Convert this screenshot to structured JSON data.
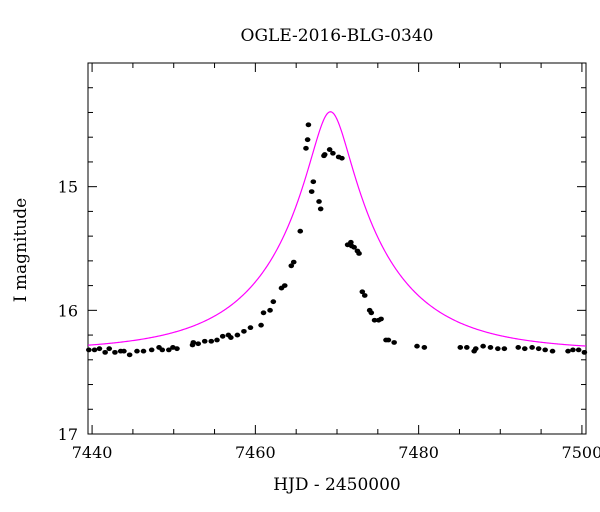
{
  "chart_data": {
    "type": "scatter",
    "title": "OGLE-2016-BLG-0340",
    "xlabel": "HJD - 2450000",
    "ylabel": "I magnitude",
    "xlim": [
      7439.5,
      7500.5
    ],
    "ylim": [
      17.0,
      14.0
    ],
    "y_inverted": true,
    "grid": false,
    "xticks": [
      7440,
      7460,
      7480,
      7500
    ],
    "xtick_labels": [
      "7440",
      "7460",
      "7480",
      "7500"
    ],
    "yticks": [
      15,
      16,
      17
    ],
    "ytick_labels": [
      "15",
      "16",
      "17"
    ],
    "colors": {
      "points": "#000000",
      "model": "#ff00ff",
      "axes": "#000000"
    },
    "series": [
      {
        "type": "scatter",
        "x": [
          7439.6,
          7440.3,
          7440.9,
          7441.6,
          7442.1,
          7442.8,
          7443.5,
          7443.9,
          7444.6,
          7445.5,
          7446.3,
          7447.3,
          7448.2,
          7448.6,
          7449.4,
          7449.9,
          7450.4,
          7452.3,
          7452.4,
          7453.0,
          7453.8,
          7454.6,
          7455.3,
          7456.0,
          7456.7,
          7457.0,
          7457.8,
          7458.6,
          7459.4,
          7460.7,
          7461.0,
          7461.8,
          7462.2,
          7463.2,
          7463.6,
          7464.4,
          7464.7,
          7465.5,
          7466.2,
          7466.4,
          7466.5,
          7466.9,
          7467.1,
          7467.8,
          7468.0,
          7468.4,
          7468.5,
          7469.1,
          7469.5,
          7470.2,
          7470.6,
          7471.3,
          7471.7,
          7471.8,
          7472.1,
          7472.5,
          7472.7,
          7473.1,
          7473.4,
          7474.0,
          7474.2,
          7474.6,
          7475.1,
          7475.4,
          7476.0,
          7476.3,
          7477.0,
          7479.8,
          7480.7,
          7485.1,
          7485.9,
          7486.8,
          7487.0,
          7487.9,
          7488.8,
          7489.7,
          7490.5,
          7492.2,
          7493.0,
          7493.9,
          7494.7,
          7495.5,
          7496.4,
          7498.3,
          7498.9,
          7499.6,
          7500.3
        ],
        "y": [
          16.32,
          16.32,
          16.31,
          16.34,
          16.31,
          16.34,
          16.33,
          16.33,
          16.36,
          16.33,
          16.33,
          16.32,
          16.3,
          16.32,
          16.32,
          16.3,
          16.31,
          16.28,
          16.26,
          16.27,
          16.25,
          16.25,
          16.24,
          16.21,
          16.2,
          16.22,
          16.2,
          16.17,
          16.14,
          16.12,
          16.02,
          16.0,
          15.93,
          15.82,
          15.8,
          15.64,
          15.61,
          15.36,
          14.69,
          14.62,
          14.5,
          15.04,
          14.96,
          15.12,
          15.18,
          14.75,
          14.74,
          14.7,
          14.73,
          14.76,
          14.77,
          15.47,
          15.45,
          15.48,
          15.49,
          15.52,
          15.54,
          15.85,
          15.88,
          16.0,
          16.02,
          16.08,
          16.08,
          16.07,
          16.24,
          16.24,
          16.26,
          16.29,
          16.3,
          16.3,
          16.3,
          16.33,
          16.31,
          16.29,
          16.3,
          16.31,
          16.31,
          16.3,
          16.31,
          16.3,
          16.31,
          16.32,
          16.33,
          16.33,
          16.32,
          16.32,
          16.34
        ]
      },
      {
        "type": "line",
        "model": "microlensing point-lens",
        "t0": 7469.2,
        "u0": 0.17,
        "tE": 13.5,
        "baseline_mag": 16.33
      }
    ]
  }
}
